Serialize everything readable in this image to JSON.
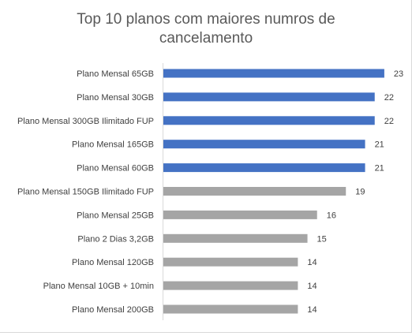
{
  "chart_data": {
    "type": "bar",
    "orientation": "horizontal",
    "title": "Top 10 planos com maiores numros de cancelamento",
    "title_lines": [
      "Top 10 planos com maiores numros de",
      "cancelamento"
    ],
    "categories": [
      "Plano Mensal 65GB",
      "Plano Mensal 30GB",
      "Plano Mensal 300GB Ilimitado FUP",
      "Plano Mensal 165GB",
      "Plano Mensal 60GB",
      "Plano Mensal 150GB Ilimitado FUP",
      "Plano Mensal 25GB",
      "Plano 2 Dias 3,2GB",
      "Plano Mensal 120GB",
      "Plano Mensal 10GB + 10min",
      "Plano Mensal 200GB"
    ],
    "values": [
      23,
      22,
      22,
      21,
      21,
      19,
      16,
      15,
      14,
      14,
      14
    ],
    "highlight_count": 5,
    "colors": {
      "highlight": "#4472c4",
      "other": "#a5a5a5",
      "axis": "#d9d9d9",
      "text": "#404040",
      "title": "#595959"
    },
    "xlim": [
      0,
      25
    ],
    "data_labels": true,
    "legend": "none",
    "grid": false
  }
}
